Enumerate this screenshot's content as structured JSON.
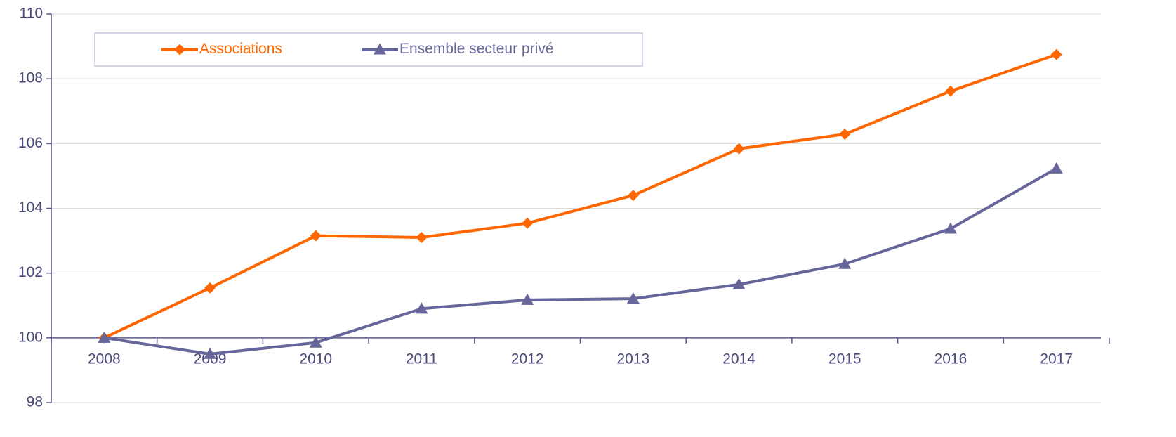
{
  "chart_data": {
    "type": "line",
    "categories": [
      "2008",
      "2009",
      "2010",
      "2011",
      "2012",
      "2013",
      "2014",
      "2015",
      "2016",
      "2017"
    ],
    "series": [
      {
        "name": "Associations",
        "color": "#ff6600",
        "marker": "diamond",
        "values": [
          100,
          101.54,
          103.15,
          103.1,
          103.54,
          104.4,
          105.84,
          106.29,
          107.62,
          108.75
        ]
      },
      {
        "name": "Ensemble secteur privé",
        "color": "#66669a",
        "marker": "triangle",
        "values": [
          100,
          99.5,
          99.85,
          100.9,
          101.17,
          101.21,
          101.65,
          102.28,
          103.37,
          105.23
        ]
      }
    ],
    "ylim": [
      98,
      110
    ],
    "yticks": [
      98,
      100,
      102,
      104,
      106,
      108,
      110
    ],
    "grid": true,
    "x_axis_crosses": 100,
    "legend": "top-left"
  }
}
